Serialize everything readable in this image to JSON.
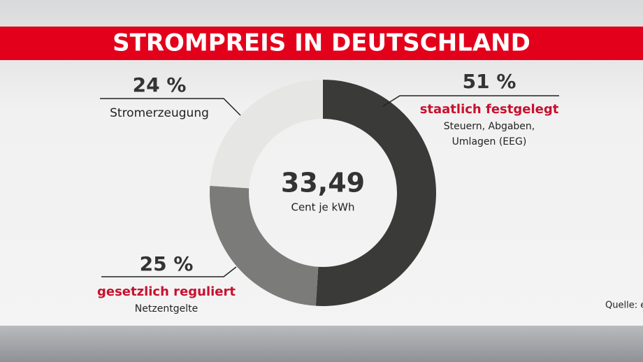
{
  "chart_data": {
    "type": "donut",
    "title": "STROMPREIS IN DEUTSCHLAND",
    "center_value": "33,49",
    "center_unit": "Cent je kWh",
    "categories": [
      "staatlich festgelegt",
      "gesetzlich reguliert",
      "Stromerzeugung"
    ],
    "values": [
      51,
      25,
      24
    ],
    "value_labels": [
      "51 %",
      "25 %",
      "24 %"
    ],
    "details": [
      [
        "Steuern, Abgaben,",
        "Umlagen (EEG)"
      ],
      [
        "Netzentgelte"
      ],
      null
    ],
    "colors": [
      "#3a3a38",
      "#7b7b79",
      "#e6e6e4"
    ],
    "label_colors": [
      "#c8102e",
      "#c8102e",
      "#222222"
    ],
    "source": "Quelle: e"
  }
}
